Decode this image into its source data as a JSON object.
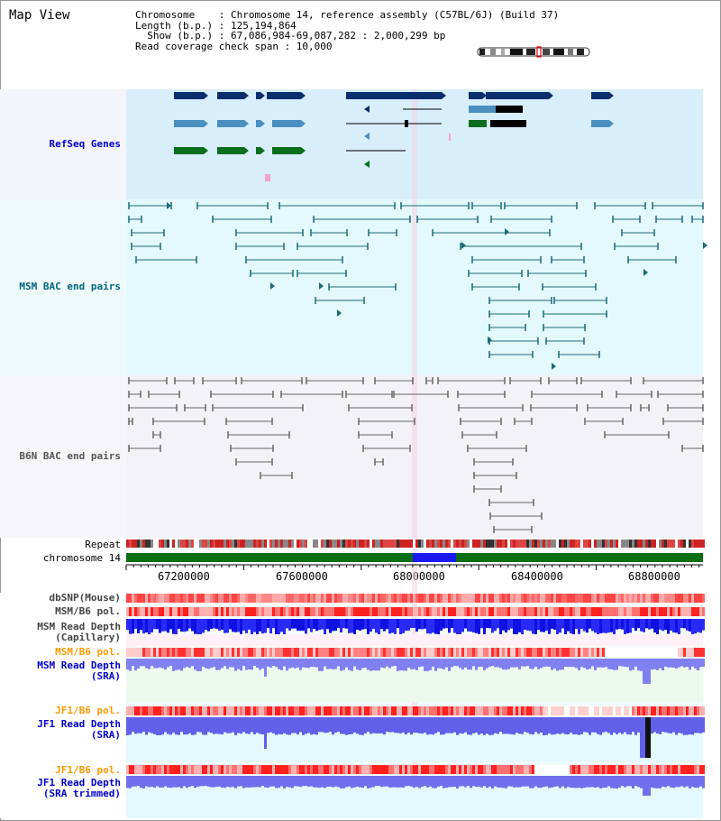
{
  "header": {
    "title": "Map View",
    "chromosome_line": "Chromosome    : Chromosome 14, reference assembly (C57BL/6J) (Build 37)",
    "length_line": "Length (b.p.) : 125,194,864",
    "show_line": "  Show (b.p.) : 67,086,984-69,087,282 : 2,000,299 bp",
    "coverage_line": "Read coverage check span : 10,000"
  },
  "tracks": {
    "refseq": "RefSeq Genes",
    "msm_bac": "MSM BAC end pairs",
    "b6n_bac": "B6N BAC end pairs",
    "repeat": "Repeat",
    "chromosome": "chromosome 14",
    "dbsnp": "dbSNP(Mouse)",
    "msm_b6_pol_1": "MSM/B6 pol.",
    "msm_read_depth_cap_1": "MSM Read Depth",
    "msm_read_depth_cap_2": "(Capillary)",
    "msm_b6_pol_2": "MSM/B6 pol.",
    "msm_read_depth_sra_1": "MSM Read Depth",
    "msm_read_depth_sra_2": "(SRA)",
    "jf1_b6_pol_1": "JF1/B6 pol.",
    "jf1_read_depth_sra_1": "JF1 Read Depth",
    "jf1_read_depth_sra_2": "(SRA)",
    "jf1_b6_pol_2": "JF1/B6 pol.",
    "jf1_read_depth_trim_1": "JF1 Read Depth",
    "jf1_read_depth_trim_2": "(SRA trimmed)"
  },
  "axis": {
    "ticks": [
      "67200000",
      "67600000",
      "68000000",
      "68400000",
      "68800000"
    ]
  },
  "colors": {
    "refseq_label": "#0000cc",
    "msm_label": "#006680",
    "b6n_label": "#555555",
    "orange_label": "#ff9900",
    "blue_label": "#0000cc",
    "gene_dark": "#0a2d6e",
    "gene_mid": "#4a8fbf",
    "gene_green": "#0a6e1e",
    "bac_msm": "#1a6a7a",
    "bac_b6n": "#666666"
  }
}
